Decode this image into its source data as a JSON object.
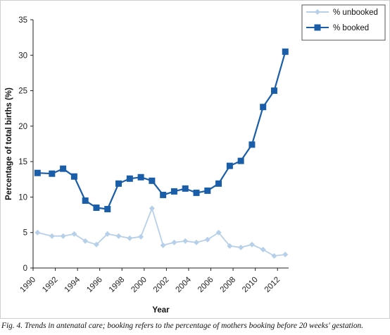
{
  "chart_data": {
    "type": "line",
    "title": "",
    "xlabel": "Year",
    "ylabel": "Percentage of total births (%)",
    "xlim": [
      1990,
      2013
    ],
    "ylim": [
      0,
      35
    ],
    "yticks": [
      0,
      5,
      10,
      15,
      20,
      25,
      30,
      35
    ],
    "xticks": [
      1990,
      1992,
      1994,
      1996,
      1998,
      2000,
      2002,
      2004,
      2006,
      2008,
      2010,
      2012
    ],
    "grid": false,
    "legend_position": "top-right",
    "series": [
      {
        "name": "% unbooked",
        "color": "#b7d0ea",
        "marker": "diamond",
        "points": [
          [
            1990.4,
            5.0
          ],
          [
            1991.7,
            4.5
          ],
          [
            1992.7,
            4.5
          ],
          [
            1993.7,
            4.8
          ],
          [
            1994.7,
            3.8
          ],
          [
            1995.7,
            3.3
          ],
          [
            1996.7,
            4.8
          ],
          [
            1997.7,
            4.5
          ],
          [
            1998.7,
            4.2
          ],
          [
            1999.7,
            4.4
          ],
          [
            2000.7,
            8.4
          ],
          [
            2001.7,
            3.2
          ],
          [
            2002.7,
            3.6
          ],
          [
            2003.7,
            3.8
          ],
          [
            2004.7,
            3.6
          ],
          [
            2005.7,
            4.0
          ],
          [
            2006.7,
            5.0
          ],
          [
            2007.7,
            3.1
          ],
          [
            2008.7,
            2.9
          ],
          [
            2009.7,
            3.3
          ],
          [
            2010.7,
            2.6
          ],
          [
            2011.7,
            1.7
          ],
          [
            2012.7,
            1.9
          ]
        ]
      },
      {
        "name": "% booked",
        "color": "#1a5da8",
        "marker": "square",
        "points": [
          [
            1990.4,
            13.4
          ],
          [
            1991.7,
            13.3
          ],
          [
            1992.7,
            14.0
          ],
          [
            1993.7,
            12.9
          ],
          [
            1994.7,
            9.5
          ],
          [
            1995.7,
            8.5
          ],
          [
            1996.7,
            8.3
          ],
          [
            1997.7,
            11.9
          ],
          [
            1998.7,
            12.6
          ],
          [
            1999.7,
            12.8
          ],
          [
            2000.7,
            12.3
          ],
          [
            2001.7,
            10.3
          ],
          [
            2002.7,
            10.8
          ],
          [
            2003.7,
            11.2
          ],
          [
            2004.7,
            10.6
          ],
          [
            2005.7,
            10.9
          ],
          [
            2006.7,
            11.9
          ],
          [
            2007.7,
            14.4
          ],
          [
            2008.7,
            15.1
          ],
          [
            2009.7,
            17.4
          ],
          [
            2010.7,
            22.7
          ],
          [
            2011.7,
            25.0
          ],
          [
            2012.7,
            30.5
          ]
        ]
      }
    ]
  },
  "caption": "Fig. 4. Trends in antenatal care; booking refers to the percentage of mothers booking before 20 weeks' gestation."
}
